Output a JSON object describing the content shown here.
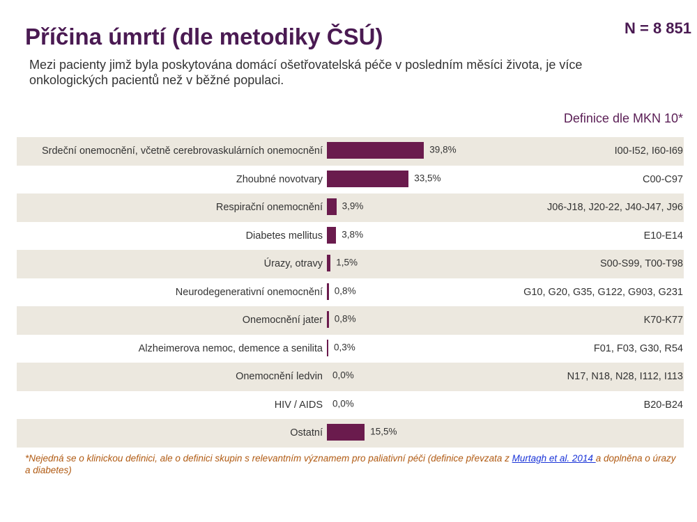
{
  "header": {
    "title": "Příčina úmrtí (dle metodiky ČSÚ)",
    "n_label": "N = 8 851",
    "subtitle": "Mezi pacienty jimž byla poskytována domácí ošetřovatelská péče v posledním měsíci života, je více onkologických pacientů než v běžné populaci.",
    "definition_header": "Definice dle MKN 10*"
  },
  "colors": {
    "title": "#4a1a52",
    "bar": "#6a1b4d",
    "row_band": "#ece8df",
    "footnote": "#b05a12",
    "link": "#1a34d8"
  },
  "chart_data": {
    "type": "bar",
    "orientation": "horizontal",
    "categories": [
      "Srdeční onemocnění, včetně cerebrovaskulárních onemocnění",
      "Zhoubné novotvary",
      "Respirační onemocnění",
      "Diabetes mellitus",
      "Úrazy, otravy",
      "Neurodegenerativní onemocnění",
      "Onemocnění jater",
      "Alzheimerova nemoc, demence a senilita",
      "Onemocnění ledvin",
      "HIV / AIDS",
      "Ostatní"
    ],
    "values": [
      39.8,
      33.5,
      3.9,
      3.8,
      1.5,
      0.8,
      0.8,
      0.3,
      0.0,
      0.0,
      15.5
    ],
    "value_labels": [
      "39,8%",
      "33,5%",
      "3,9%",
      "3,8%",
      "1,5%",
      "0,8%",
      "0,8%",
      "0,3%",
      "0,0%",
      "0,0%",
      "15,5%"
    ],
    "definitions": [
      "I00-I52, I60-I69",
      "C00-C97",
      "J06-J18, J20-22, J40-J47, J96",
      "E10-E14",
      "S00-S99, T00-T98",
      "G10, G20, G35, G122, G903, G231",
      "K70-K77",
      "F01, F03, G30, R54",
      "N17, N18, N28, I112, I113",
      "B20-B24",
      ""
    ],
    "xlim": [
      0,
      100
    ],
    "grid": false
  },
  "footnote": {
    "text_before": "*Nejedná se o klinickou definici, ale o definici skupin s relevantním významem pro paliativní péči (definice převzata z ",
    "link_text": "Murtagh et al. 2014 ",
    "text_after": "a doplněna o úrazy a diabetes)"
  }
}
